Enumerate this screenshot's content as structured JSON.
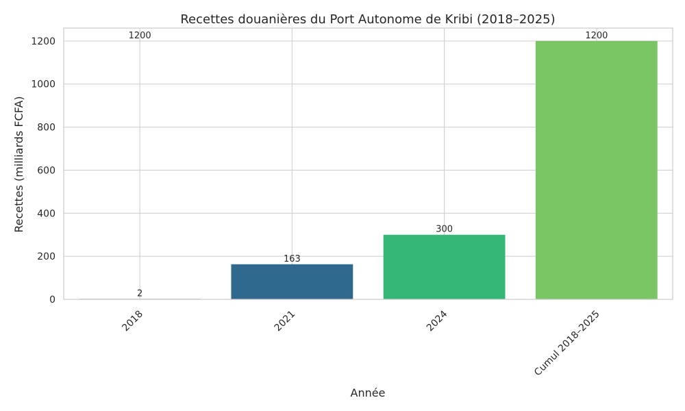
{
  "chart_data": {
    "type": "bar",
    "title": "Recettes douanières du Port Autonome de Kribi (2018–2025)",
    "xlabel": "Année",
    "ylabel": "Recettes (milliards FCFA)",
    "categories": [
      "2018",
      "2021",
      "2024",
      "Cumul 2018–2025"
    ],
    "values": [
      2,
      163,
      300,
      1200
    ],
    "data_labels": [
      "2",
      "163",
      "300",
      "1200"
    ],
    "stray_label": "1200",
    "colors": [
      "#440154",
      "#31688e",
      "#35b779",
      "#7ac665"
    ],
    "yticks": [
      0,
      200,
      400,
      600,
      800,
      1000,
      1200
    ],
    "ylim": [
      0,
      1260
    ],
    "grid": true,
    "legend": "none"
  }
}
